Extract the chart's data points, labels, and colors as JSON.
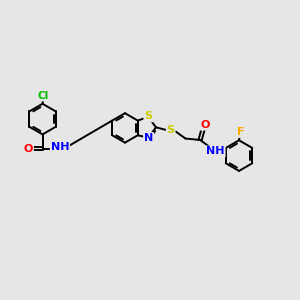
{
  "background_color": "#e6e6e6",
  "bond_color": "#000000",
  "atom_colors": {
    "S": "#cccc00",
    "N": "#0000ff",
    "O": "#ff0000",
    "Cl": "#00bb00",
    "F": "#ffaa00",
    "C": "#000000",
    "H": "#555555"
  },
  "figsize": [
    3.0,
    3.0
  ],
  "dpi": 100,
  "lw": 1.4,
  "fs": 7.0
}
